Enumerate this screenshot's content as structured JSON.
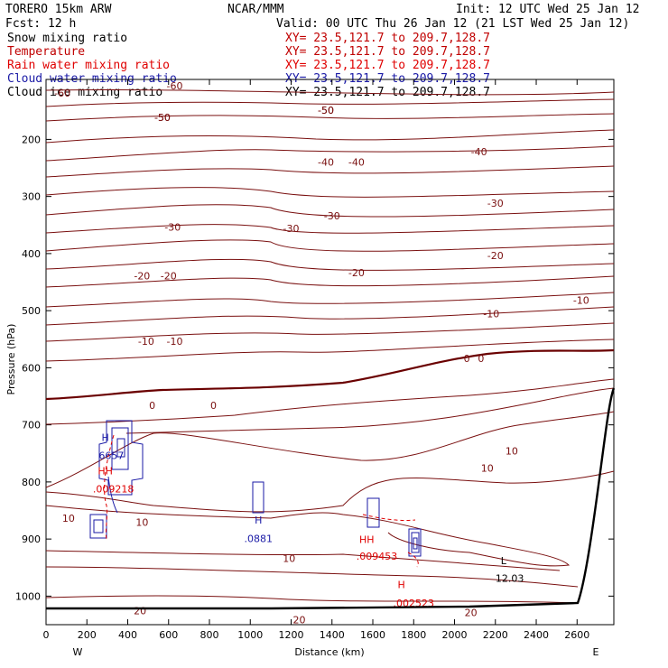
{
  "header": {
    "model": "TORERO  15km ARW",
    "org": "NCAR/MMM",
    "init": "Init: 12 UTC Wed 25 Jan 12",
    "fcst": "Fcst:   12 h",
    "valid": "Valid: 00 UTC Thu 26 Jan 12 (21 LST Wed 25 Jan 12)"
  },
  "fields": [
    {
      "name": "Snow mixing ratio",
      "xy": "",
      "color": "#000000"
    },
    {
      "name": "Temperature",
      "xy": "XY=  23.5,121.7 to 209.7,128.7",
      "color": "#c00000"
    },
    {
      "name": "Rain water mixing ratio",
      "xy": "XY=  23.5,121.7 to 209.7,128.7",
      "color": "#e00000"
    },
    {
      "name": "Cloud water mixing ratio",
      "xy": "XY=  23.5,121.7 to 209.7,128.7",
      "color": "#1a1aa6"
    },
    {
      "name": "Cloud ice mixing ratio",
      "xy": "XY=  23.5,121.7 to 209.7,128.7",
      "color": "#000000"
    }
  ],
  "first_xy": "XY=  23.5,121.7 to 209.7,128.7",
  "chart_data": {
    "type": "line",
    "xlabel": "Distance (km)",
    "ylabel": "Pressure (hPa)",
    "xlim": [
      0,
      2780
    ],
    "ylim": [
      1050,
      100
    ],
    "xticks": [
      0,
      200,
      400,
      600,
      800,
      1000,
      1200,
      1400,
      1600,
      1800,
      2000,
      2200,
      2400,
      2600
    ],
    "yticks": [
      200,
      300,
      400,
      500,
      600,
      700,
      800,
      900,
      1000
    ],
    "x_end_labels": {
      "left": "W",
      "right": "E"
    },
    "colors": {
      "isotherm": "#7a1010",
      "zero": "#6a0000",
      "cloud": "#1a1aa6",
      "rain": "#e00000",
      "terrain": "#000000"
    },
    "isotherm_labels": [
      {
        "text": "-60",
        "x": 80,
        "p": 125
      },
      {
        "text": "-60",
        "x": 630,
        "p": 112
      },
      {
        "text": "-50",
        "x": 570,
        "p": 168
      },
      {
        "text": "-50",
        "x": 1370,
        "p": 155
      },
      {
        "text": "-50",
        "x": 570,
        "p": 168
      },
      {
        "text": "-50",
        "x": 1370,
        "p": 155
      },
      {
        "text": "-40",
        "x": 1370,
        "p": 246
      },
      {
        "text": "-40",
        "x": 1520,
        "p": 246
      },
      {
        "text": "-40",
        "x": 2120,
        "p": 228
      },
      {
        "text": "-30",
        "x": 620,
        "p": 360
      },
      {
        "text": "-30",
        "x": 1200,
        "p": 362
      },
      {
        "text": "-30",
        "x": 1400,
        "p": 340
      },
      {
        "text": "-30",
        "x": 2200,
        "p": 318
      },
      {
        "text": "-20",
        "x": 470,
        "p": 445
      },
      {
        "text": "-20",
        "x": 600,
        "p": 445
      },
      {
        "text": "-20",
        "x": 1520,
        "p": 440
      },
      {
        "text": "-20",
        "x": 2200,
        "p": 410
      },
      {
        "text": "-10",
        "x": 490,
        "p": 560
      },
      {
        "text": "-10",
        "x": 630,
        "p": 560
      },
      {
        "text": "-10",
        "x": 2180,
        "p": 512
      },
      {
        "text": "-10",
        "x": 2620,
        "p": 488
      },
      {
        "text": "0",
        "x": 2060,
        "p": 590
      },
      {
        "text": "0",
        "x": 2130,
        "p": 590
      },
      {
        "text": "0",
        "x": 520,
        "p": 672
      },
      {
        "text": "0",
        "x": 820,
        "p": 672
      },
      {
        "text": "10",
        "x": 2160,
        "p": 782
      },
      {
        "text": "10",
        "x": 2280,
        "p": 752
      },
      {
        "text": "10",
        "x": 110,
        "p": 870
      },
      {
        "text": "10",
        "x": 470,
        "p": 877
      },
      {
        "text": "10",
        "x": 1190,
        "p": 940
      },
      {
        "text": "20",
        "x": 460,
        "p": 1032
      },
      {
        "text": "20",
        "x": 1240,
        "p": 1048
      },
      {
        "text": "20",
        "x": 2080,
        "p": 1035
      }
    ],
    "extrema": [
      {
        "text": "H",
        "x": 290,
        "p": 728,
        "color": "#1a1aa6"
      },
      {
        "text": "6657",
        "x": 320,
        "p": 760,
        "color": "#1a1aa6"
      },
      {
        "text": "HH",
        "x": 290,
        "p": 787,
        "color": "#e00000"
      },
      {
        "text": ".009218",
        "x": 330,
        "p": 818,
        "color": "#e00000"
      },
      {
        "text": "H",
        "x": 1040,
        "p": 873,
        "color": "#1a1aa6"
      },
      {
        "text": ".0881",
        "x": 1040,
        "p": 905,
        "color": "#1a1aa6"
      },
      {
        "text": "HH",
        "x": 1570,
        "p": 907,
        "color": "#e00000"
      },
      {
        "text": ".009453",
        "x": 1620,
        "p": 936,
        "color": "#e00000"
      },
      {
        "text": "H",
        "x": 1740,
        "p": 986,
        "color": "#e00000"
      },
      {
        "text": ".002523",
        "x": 1800,
        "p": 1018,
        "color": "#e00000"
      },
      {
        "text": "L",
        "x": 2240,
        "p": 944,
        "color": "#000000"
      },
      {
        "text": "12.03",
        "x": 2270,
        "p": 975,
        "color": "#000000"
      }
    ]
  }
}
